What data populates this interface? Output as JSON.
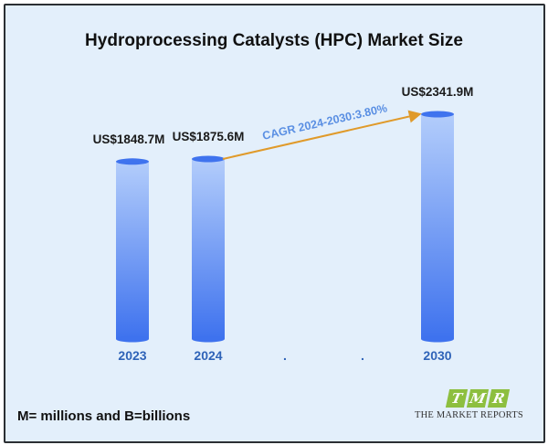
{
  "chart_data": {
    "type": "bar",
    "title": "Hydroprocessing Catalysts (HPC) Market Size",
    "categories": [
      "2023",
      "2024",
      ".",
      ".",
      "2030"
    ],
    "values": [
      1848.7,
      1875.6,
      null,
      null,
      2341.9
    ],
    "data_labels": [
      "US$1848.7M",
      "US$1875.6M",
      "",
      "",
      "US$2341.9M"
    ],
    "annotation": "CAGR 2024-2030:3.80%",
    "unit": "US$ M",
    "xlabel": "",
    "ylabel": "",
    "grid": false,
    "colors": {
      "bar_top": "#b3cdfb",
      "bar_bottom": "#3e72ee",
      "bar_cap": "#3f73ee",
      "arrow": "#e09a2a",
      "annotation_text": "#5a8fe3",
      "category_text": "#2f63b8"
    }
  },
  "footnote": "M= millions and B=billions",
  "logo": {
    "letters": [
      "T",
      "M",
      "R"
    ],
    "text": "THE MARKET REPORTS",
    "color": "#8dbf3f"
  }
}
